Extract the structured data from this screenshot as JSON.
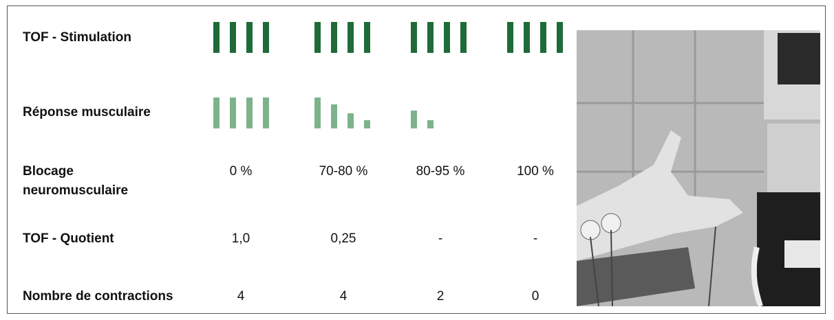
{
  "rows": [
    {
      "label": "TOF - Stimulation"
    },
    {
      "label": "Réponse musculaire"
    },
    {
      "label": "Blocage neuromusculaire",
      "cells": [
        "0 %",
        "70-80 %",
        "80-95 %",
        "100 %"
      ]
    },
    {
      "label": "TOF - Quotient",
      "cells": [
        "1,0",
        "0,25",
        "-",
        "-"
      ]
    },
    {
      "label": "Nombre de contractions",
      "cells": [
        "4",
        "4",
        "2",
        "0"
      ]
    }
  ]
}
